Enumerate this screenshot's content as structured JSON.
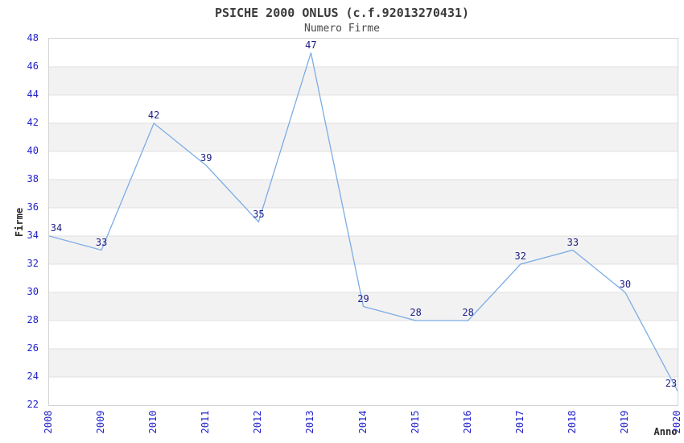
{
  "header": {
    "title": "PSICHE 2000 ONLUS (c.f.92013270431)",
    "subtitle": "Numero Firme"
  },
  "chart_data": {
    "type": "line",
    "title": "PSICHE 2000 ONLUS (c.f.92013270431)",
    "subtitle": "Numero Firme",
    "xlabel": "Anno",
    "ylabel": "Firme",
    "categories": [
      "2008",
      "2009",
      "2010",
      "2011",
      "2012",
      "2013",
      "2014",
      "2015",
      "2016",
      "2017",
      "2018",
      "2019",
      "2020"
    ],
    "series": [
      {
        "name": "Numero Firme",
        "values": [
          34,
          33,
          42,
          39,
          35,
          47,
          29,
          28,
          28,
          32,
          33,
          30,
          23
        ]
      }
    ],
    "ylim": [
      22,
      48
    ],
    "ytick_step": 2,
    "grid": "horizontal-bands",
    "legend_position": "none",
    "data_labels_visible": true,
    "colors": {
      "line": "#7cace5",
      "tick_label": "#2222cc",
      "data_label": "#1c1c86",
      "band_fill": "#f2f2f2",
      "gridline": "#e0e0e0",
      "plot_border": "#d4d4d4",
      "title": "#3a3a3a",
      "subtitle": "#4a4a4a",
      "axis_title": "#2a2a2a"
    }
  }
}
